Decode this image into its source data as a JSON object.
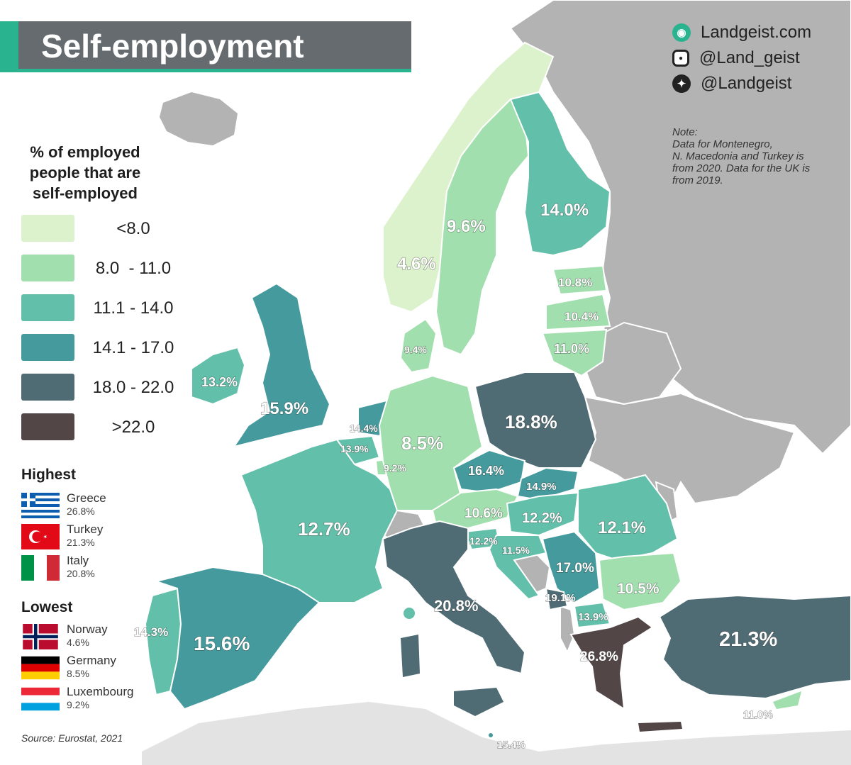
{
  "title": "Self-employment",
  "social": {
    "website": "Landgeist.com",
    "instagram": "@Land_geist",
    "twitter": "@Landgeist"
  },
  "note": "Note:\nData for Montenegro,\nN. Macedonia and Turkey is\nfrom 2020. Data for the UK is\nfrom 2019.",
  "legend": {
    "title": "% of employed people that are self-employed",
    "items": [
      {
        "label": "<8.0",
        "color": "#dcf2cc"
      },
      {
        "label": "8.0  - 11.0",
        "color": "#a2dfae"
      },
      {
        "label": "11.1 - 14.0",
        "color": "#62bfa9"
      },
      {
        "label": "14.1 - 17.0",
        "color": "#449a9c"
      },
      {
        "label": "18.0 - 22.0",
        "color": "#4f6b74"
      },
      {
        "label": ">22.0",
        "color": "#524746"
      }
    ]
  },
  "highest": {
    "title": "Highest",
    "items": [
      {
        "name": "Greece",
        "value": "26.8%"
      },
      {
        "name": "Turkey",
        "value": "21.3%"
      },
      {
        "name": "Italy",
        "value": "20.8%"
      }
    ]
  },
  "lowest": {
    "title": "Lowest",
    "items": [
      {
        "name": "Norway",
        "value": "4.6%"
      },
      {
        "name": "Germany",
        "value": "8.5%"
      },
      {
        "name": "Luxembourg",
        "value": "9.2%"
      }
    ]
  },
  "source": "Source: Eurostat, 2021",
  "map_values": {
    "norway": "4.6%",
    "sweden": "9.6%",
    "finland": "14.0%",
    "estonia": "10.8%",
    "latvia": "10.4%",
    "lithuania": "11.0%",
    "denmark": "9.4%",
    "ireland": "13.2%",
    "uk": "15.9%",
    "netherlands": "14.4%",
    "belgium": "13.9%",
    "luxembourg": "9.2%",
    "germany": "8.5%",
    "poland": "18.8%",
    "czechia": "16.4%",
    "slovakia": "14.9%",
    "austria": "10.6%",
    "hungary": "12.2%",
    "romania": "12.1%",
    "slovenia": "12.2%",
    "croatia": "11.5%",
    "serbia": "17.0%",
    "bulgaria": "10.5%",
    "montenegro": "19.1%",
    "north_macedonia": "13.9%",
    "greece": "26.8%",
    "turkey": "21.3%",
    "cyprus": "11.0%",
    "france": "12.7%",
    "italy": "20.8%",
    "portugal": "14.3%",
    "spain": "15.6%",
    "malta": "15.4%"
  },
  "colors": {
    "accent": "#2ab38f",
    "title_bar": "#666b70",
    "no_data": "#b3b3b3",
    "border": "#ffffff"
  }
}
